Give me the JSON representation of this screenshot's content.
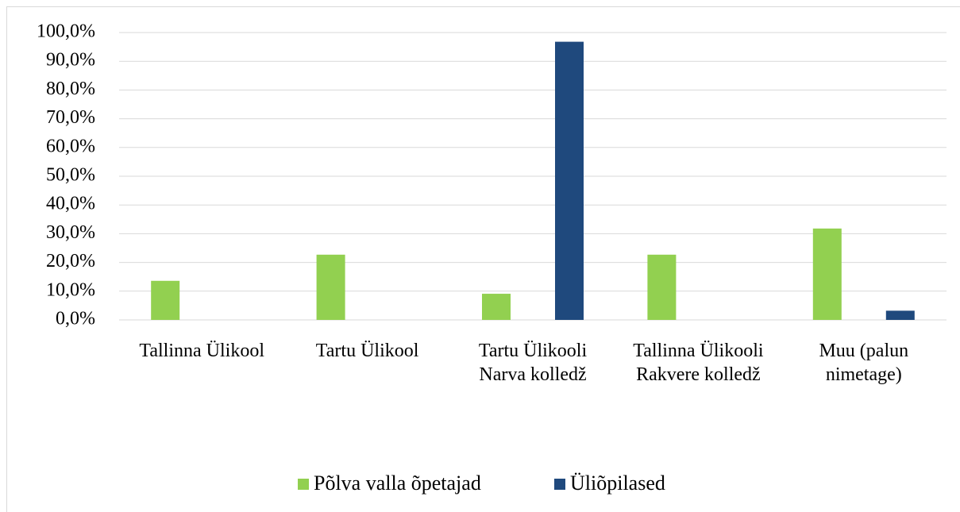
{
  "chart_data": {
    "type": "bar",
    "categories": [
      "Tallinna Ülikool",
      "Tartu Ülikool",
      "Tartu Ülikooli Narva kolledž",
      "Tallinna Ülikooli Rakvere kolledž",
      "Muu (palun nimetage)"
    ],
    "series": [
      {
        "name": "Põlva valla õpetajad",
        "color": "#92d050",
        "values": [
          13.6,
          22.7,
          9.1,
          22.7,
          31.8
        ]
      },
      {
        "name": "Üliõpilased",
        "color": "#1f497d",
        "values": [
          0,
          0,
          96.8,
          0,
          3.2
        ]
      }
    ],
    "ylim": [
      0,
      100
    ],
    "yticks": [
      {
        "value": 0,
        "label": "0,0%"
      },
      {
        "value": 10,
        "label": "10,0%"
      },
      {
        "value": 20,
        "label": "20,0%"
      },
      {
        "value": 30,
        "label": "30,0%"
      },
      {
        "value": 40,
        "label": "40,0%"
      },
      {
        "value": 50,
        "label": "50,0%"
      },
      {
        "value": 60,
        "label": "60,0%"
      },
      {
        "value": 70,
        "label": "70,0%"
      },
      {
        "value": 80,
        "label": "80,0%"
      },
      {
        "value": 90,
        "label": "90,0%"
      },
      {
        "value": 100,
        "label": "100,0%"
      }
    ],
    "grid": true,
    "legend": "bottom"
  }
}
